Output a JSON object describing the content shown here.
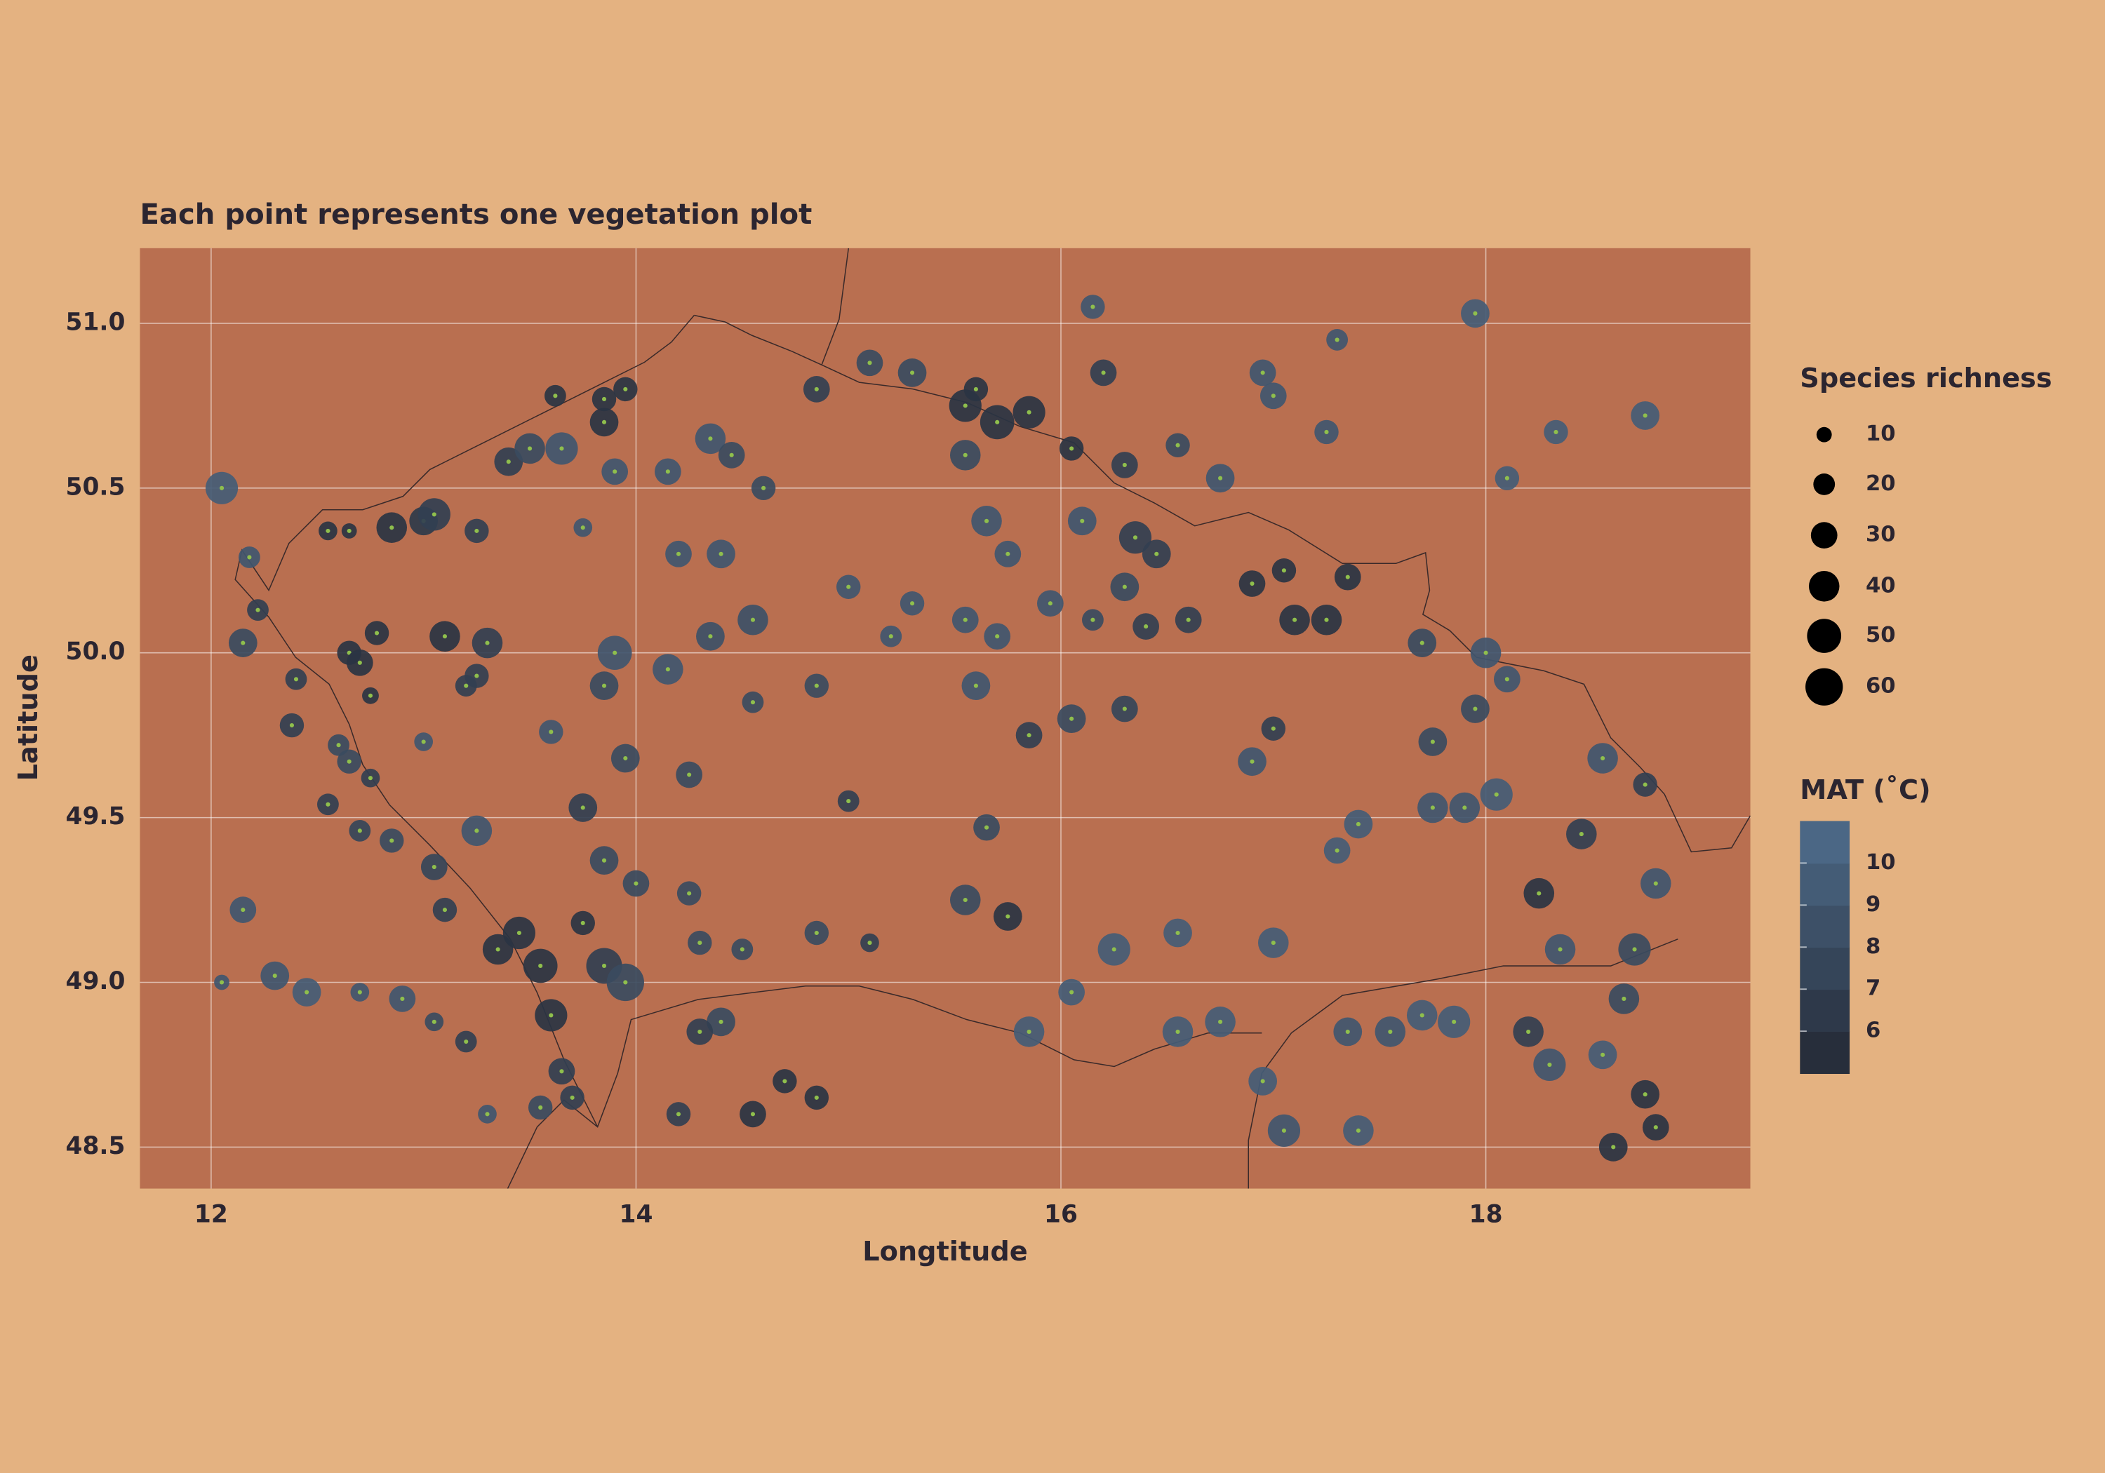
{
  "chart_data": {
    "type": "scatter",
    "title": "Each point represents one vegetation plot",
    "x_label": "Longtitude",
    "y_label": "Latitude",
    "xlim": [
      11.665,
      19.245
    ],
    "ylim": [
      48.374,
      51.228
    ],
    "xticks": [
      12,
      14,
      16,
      18
    ],
    "yticks": [
      {
        "value": 48.5,
        "label": "48.5"
      },
      {
        "value": 49,
        "label": "49.0"
      },
      49.5,
      {
        "value": 50,
        "label": "50.0"
      },
      50.5,
      {
        "value": 51,
        "label": "51.0"
      }
    ],
    "grid": true,
    "center_color": "#8fbf4d",
    "colormap": [
      "#232834",
      "#4f6d8c"
    ],
    "points": {
      "x": [
        12.05,
        12.15,
        12.22,
        12.4,
        12.38,
        12.55,
        12.65,
        12.85,
        13.0,
        13.05,
        12.18,
        12.65,
        12.7,
        12.75,
        12.78,
        13.1,
        13.3,
        13.25,
        13.2,
        13.0,
        13.6,
        12.6,
        12.65,
        12.75,
        12.55,
        12.7,
        12.85,
        13.05,
        13.25,
        13.1,
        12.15,
        12.05,
        12.3,
        12.45,
        12.7,
        12.9,
        13.05,
        13.2,
        13.3,
        13.35,
        13.45,
        13.55,
        13.6,
        13.65,
        13.75,
        13.85,
        13.95,
        13.55,
        13.7,
        13.4,
        13.5,
        13.65,
        13.62,
        13.85,
        13.85,
        13.95,
        13.25,
        13.75,
        13.9,
        14.15,
        14.35,
        14.45,
        14.2,
        14.4,
        14.6,
        14.55,
        14.35,
        13.9,
        14.15,
        13.85,
        13.95,
        13.75,
        13.85,
        14.0,
        14.25,
        14.25,
        14.3,
        14.5,
        14.55,
        14.4,
        14.3,
        14.2,
        14.7,
        14.85,
        14.85,
        15.1,
        15.0,
        14.85,
        14.55,
        15.0,
        15.3,
        15.2,
        15.55,
        15.3,
        15.1,
        14.85,
        15.55,
        15.7,
        15.85,
        15.6,
        15.55,
        15.65,
        15.75,
        15.95,
        16.1,
        16.35,
        16.45,
        16.3,
        16.15,
        16.4,
        16.6,
        16.2,
        16.15,
        16.05,
        16.3,
        16.75,
        16.55,
        16.95,
        17.0,
        17.25,
        17.3,
        17.95,
        18.75,
        18.1,
        18.33,
        17.1,
        17.25,
        17.05,
        17.35,
        17.7,
        18.0,
        18.1,
        17.75,
        17.95,
        16.9,
        17.0,
        17.4,
        17.3,
        17.75,
        17.9,
        18.05,
        18.25,
        18.45,
        18.55,
        18.75,
        18.8,
        18.35,
        18.7,
        18.65,
        18.2,
        18.3,
        18.55,
        17.85,
        17.7,
        17.55,
        17.35,
        17.4,
        17.05,
        16.95,
        17.0,
        16.75,
        16.55,
        16.25,
        16.05,
        15.85,
        15.75,
        15.55,
        15.65,
        16.55,
        16.3,
        16.05,
        15.85,
        15.6,
        18.6,
        18.8,
        18.75,
        15.7,
        16.9
      ],
      "y": [
        50.5,
        50.03,
        50.13,
        49.92,
        49.78,
        50.37,
        50.37,
        50.38,
        50.4,
        50.42,
        50.29,
        50.0,
        49.97,
        49.87,
        50.06,
        50.05,
        50.03,
        49.93,
        49.9,
        49.73,
        49.76,
        49.72,
        49.67,
        49.62,
        49.54,
        49.46,
        49.43,
        49.35,
        49.46,
        49.22,
        49.22,
        49.0,
        49.02,
        48.97,
        48.97,
        48.95,
        48.88,
        48.82,
        48.6,
        49.1,
        49.15,
        49.05,
        48.9,
        48.73,
        49.18,
        49.05,
        49.0,
        48.62,
        48.65,
        50.58,
        50.62,
        50.62,
        50.78,
        50.77,
        50.7,
        50.8,
        50.37,
        50.38,
        50.55,
        50.55,
        50.65,
        50.6,
        50.3,
        50.3,
        50.5,
        50.1,
        50.05,
        50.0,
        49.95,
        49.9,
        49.68,
        49.53,
        49.37,
        49.3,
        49.63,
        49.27,
        49.12,
        49.1,
        48.6,
        48.88,
        48.85,
        48.6,
        48.7,
        48.65,
        49.15,
        49.12,
        49.55,
        49.9,
        49.85,
        50.2,
        50.15,
        50.05,
        50.1,
        50.85,
        50.88,
        50.8,
        50.75,
        50.7,
        50.73,
        50.8,
        50.6,
        50.4,
        50.3,
        50.15,
        50.4,
        50.35,
        50.3,
        50.2,
        50.1,
        50.08,
        50.1,
        50.85,
        51.05,
        50.62,
        50.57,
        50.53,
        50.63,
        50.85,
        50.78,
        50.67,
        50.95,
        51.03,
        50.72,
        50.53,
        50.67,
        50.1,
        50.1,
        50.25,
        50.23,
        50.03,
        50.0,
        49.92,
        49.73,
        49.83,
        49.67,
        49.77,
        49.48,
        49.4,
        49.53,
        49.53,
        49.57,
        49.27,
        49.45,
        49.68,
        49.6,
        49.3,
        49.1,
        49.1,
        48.95,
        48.85,
        48.75,
        48.78,
        48.88,
        48.9,
        48.85,
        48.85,
        48.55,
        48.55,
        48.7,
        49.12,
        48.88,
        48.85,
        49.1,
        48.97,
        48.85,
        49.2,
        49.25,
        49.47,
        49.15,
        49.83,
        49.8,
        49.75,
        49.9,
        48.5,
        48.56,
        48.66,
        50.05,
        50.21
      ],
      "size": [
        45,
        35,
        20,
        20,
        25,
        15,
        10,
        40,
        35,
        45,
        20,
        25,
        30,
        12,
        25,
        40,
        40,
        25,
        20,
        15,
        25,
        20,
        25,
        15,
        20,
        20,
        25,
        30,
        40,
        25,
        30,
        10,
        35,
        35,
        15,
        30,
        15,
        20,
        15,
        40,
        45,
        50,
        45,
        30,
        25,
        55,
        60,
        25,
        25,
        35,
        40,
        45,
        20,
        25,
        35,
        25,
        25,
        15,
        30,
        30,
        40,
        30,
        30,
        35,
        25,
        40,
        35,
        50,
        40,
        35,
        35,
        35,
        35,
        30,
        30,
        25,
        25,
        20,
        30,
        35,
        30,
        25,
        25,
        25,
        25,
        15,
        20,
        25,
        20,
        25,
        25,
        20,
        30,
        35,
        30,
        30,
        45,
        50,
        45,
        25,
        40,
        40,
        30,
        30,
        35,
        45,
        35,
        35,
        20,
        30,
        30,
        30,
        25,
        25,
        30,
        35,
        25,
        30,
        30,
        25,
        20,
        35,
        35,
        25,
        25,
        40,
        40,
        25,
        30,
        35,
        40,
        30,
        35,
        35,
        35,
        25,
        35,
        30,
        40,
        40,
        45,
        40,
        40,
        40,
        25,
        40,
        40,
        45,
        40,
        40,
        45,
        35,
        45,
        40,
        40,
        35,
        40,
        45,
        35,
        40,
        40,
        40,
        45,
        30,
        40,
        35,
        40,
        30,
        35,
        30,
        35,
        30,
        35,
        35,
        30,
        35,
        30,
        30
      ],
      "mat": [
        9.5,
        8,
        7,
        7,
        7,
        6,
        6,
        6,
        6.5,
        7,
        9,
        6,
        6,
        6,
        6,
        6,
        7,
        7,
        7,
        9,
        9,
        8,
        8,
        7,
        7,
        7.5,
        8,
        7.5,
        9,
        7,
        9,
        9,
        9,
        9.5,
        9,
        9,
        8,
        7,
        9,
        6,
        6,
        6,
        6,
        7,
        6,
        7,
        8,
        8,
        7,
        7,
        8,
        9,
        6,
        6,
        6,
        6,
        7,
        9,
        9,
        9,
        9,
        8,
        9,
        9,
        8,
        8.5,
        8.5,
        9,
        9,
        8,
        8,
        7,
        8,
        8,
        8,
        8,
        8,
        8,
        6,
        8,
        7,
        7,
        6,
        6,
        8,
        7,
        7,
        8,
        8,
        9,
        9,
        9,
        9,
        8,
        8,
        7,
        6,
        6,
        6,
        6,
        8,
        9,
        9,
        9,
        9,
        7,
        7,
        8,
        8,
        7,
        7,
        7,
        9,
        6,
        7,
        9,
        8,
        9,
        9,
        9,
        9,
        9.5,
        9.5,
        9.5,
        9.5,
        6,
        6,
        6,
        6,
        8,
        9,
        9,
        8,
        8,
        9,
        7,
        9.5,
        9.5,
        9,
        9,
        9.5,
        6,
        7,
        9,
        7,
        9,
        9,
        8,
        8,
        7,
        9,
        9.5,
        9.5,
        9.5,
        9,
        9,
        9.5,
        9,
        9.5,
        9.5,
        9.5,
        9.5,
        9.5,
        9.5,
        9.5,
        6,
        8,
        8,
        9.5,
        7.5,
        8,
        7,
        9,
        6,
        6,
        6,
        9,
        6
      ]
    },
    "size_legend": {
      "title": "Species richness",
      "values": [
        10,
        20,
        30,
        40,
        50,
        60
      ]
    },
    "color_legend": {
      "title": "MAT (˚C)",
      "range": [
        5,
        11
      ],
      "ticks": [
        6,
        7,
        8,
        9,
        10
      ]
    }
  }
}
